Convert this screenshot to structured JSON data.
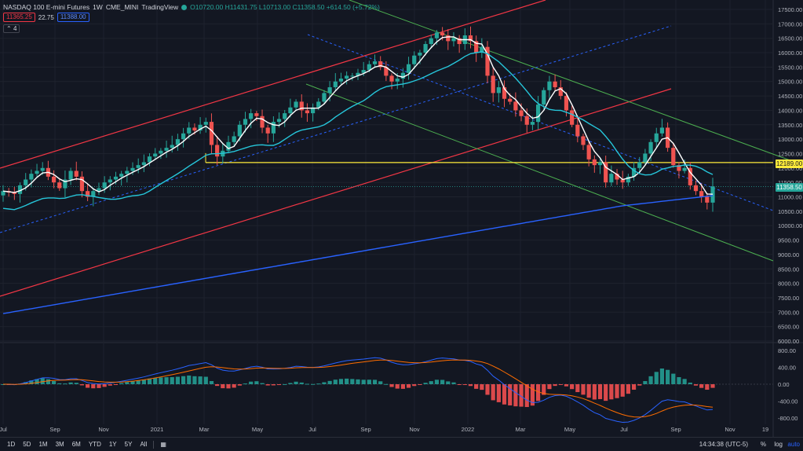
{
  "header": {
    "symbol": "NASDAQ 100 E-mini Futures",
    "interval": "1W",
    "exchange": "CME_MINI",
    "source": "TradingView",
    "ohlc": "O10720.00 H11431.75 L10713.00 C11358.50 +614.50 (+5.72%)",
    "bid": "11365.25",
    "spread": "22.75",
    "ask": "11388.00",
    "indicator_count": "4"
  },
  "price_axis": {
    "labels": [
      "17500.00",
      "17000.00",
      "16500.00",
      "16000.00",
      "15500.00",
      "15000.00",
      "14500.00",
      "14000.00",
      "13500.00",
      "13000.00",
      "12500.00",
      "12000.00",
      "11500.00",
      "11000.00",
      "10500.00",
      "10000.00",
      "9500.00",
      "9000.00",
      "8500.00",
      "8000.00",
      "7500.00",
      "7000.00",
      "6500.00",
      "6000.00"
    ],
    "values": [
      17500,
      17000,
      16500,
      16000,
      15500,
      15000,
      14500,
      14000,
      13500,
      13000,
      12500,
      12000,
      11500,
      11000,
      10500,
      10000,
      9500,
      9000,
      8500,
      8000,
      7500,
      7000,
      6500,
      6000
    ],
    "level_tag": "12189.00",
    "level_value": 12189,
    "price_tag": "11358.50",
    "price_value": 11358.5
  },
  "macd_axis": {
    "labels": [
      "800.00",
      "400.00",
      "0.00",
      "-400.00",
      "-800.00"
    ],
    "values": [
      800,
      400,
      0,
      -400,
      -800
    ]
  },
  "time_axis": [
    "Jul",
    "Sep",
    "Nov",
    "2021",
    "Mar",
    "May",
    "Jul",
    "Sep",
    "Nov",
    "2022",
    "Mar",
    "May",
    "Jul",
    "Sep",
    "Nov",
    "19"
  ],
  "bottom_bar": {
    "ranges": [
      "1D",
      "5D",
      "1M",
      "3M",
      "6M",
      "YTD",
      "1Y",
      "5Y",
      "All"
    ],
    "clock": "14:34:38 (UTC-5)",
    "options": [
      "%",
      "log",
      "auto"
    ]
  },
  "colors": {
    "background": "#131722",
    "up": "#26a69a",
    "down": "#ef5350",
    "channel_red": "#f23645",
    "channel_green": "#4caf50",
    "level_yellow": "#ffeb3b",
    "ma20_white": "#ffffff",
    "ma50_cyan": "#26c6da",
    "ma200_blue": "#2962ff"
  },
  "chart_data": {
    "type": "candlestick",
    "period": "weekly",
    "close_last": 11358.5,
    "weekly_closes": [
      11200,
      11150,
      11100,
      11400,
      11600,
      11800,
      11900,
      12000,
      11700,
      11500,
      11300,
      11600,
      11900,
      11700,
      11200,
      11000,
      11200,
      11300,
      11500,
      11600,
      11700,
      11800,
      11900,
      12000,
      12100,
      12200,
      12400,
      12500,
      12600,
      12700,
      12800,
      13000,
      13200,
      13400,
      13300,
      13500,
      13600,
      12800,
      12400,
      12600,
      12900,
      13100,
      13500,
      13700,
      13900,
      13800,
      13400,
      13200,
      13600,
      13700,
      13900,
      14100,
      14300,
      14000,
      13900,
      14100,
      14300,
      14600,
      14800,
      15000,
      15100,
      15200,
      15200,
      15300,
      15400,
      15600,
      15700,
      15500,
      15200,
      15000,
      15100,
      15300,
      15600,
      15900,
      16000,
      16300,
      16500,
      16700,
      16600,
      16400,
      16500,
      16300,
      16600,
      16400,
      16000,
      16200,
      15200,
      14600,
      14800,
      14400,
      14300,
      14000,
      13800,
      13500,
      13600,
      14200,
      14700,
      15000,
      14800,
      14500,
      14000,
      13500,
      13100,
      12800,
      12300,
      12100,
      12200,
      11500,
      11800,
      11600,
      11500,
      11700,
      12000,
      12200,
      12500,
      12900,
      13200,
      13400,
      12700,
      12100,
      11900,
      12000,
      11400,
      11200,
      11000,
      10800,
      11358.5
    ],
    "overlays": [
      {
        "name": "SMA 20"
      },
      {
        "name": "SMA 50"
      },
      {
        "name": "SMA 200"
      }
    ],
    "horizontal_level": 12189,
    "ylim": [
      6000,
      17500
    ],
    "macd_ylim": [
      -950,
      950
    ]
  }
}
